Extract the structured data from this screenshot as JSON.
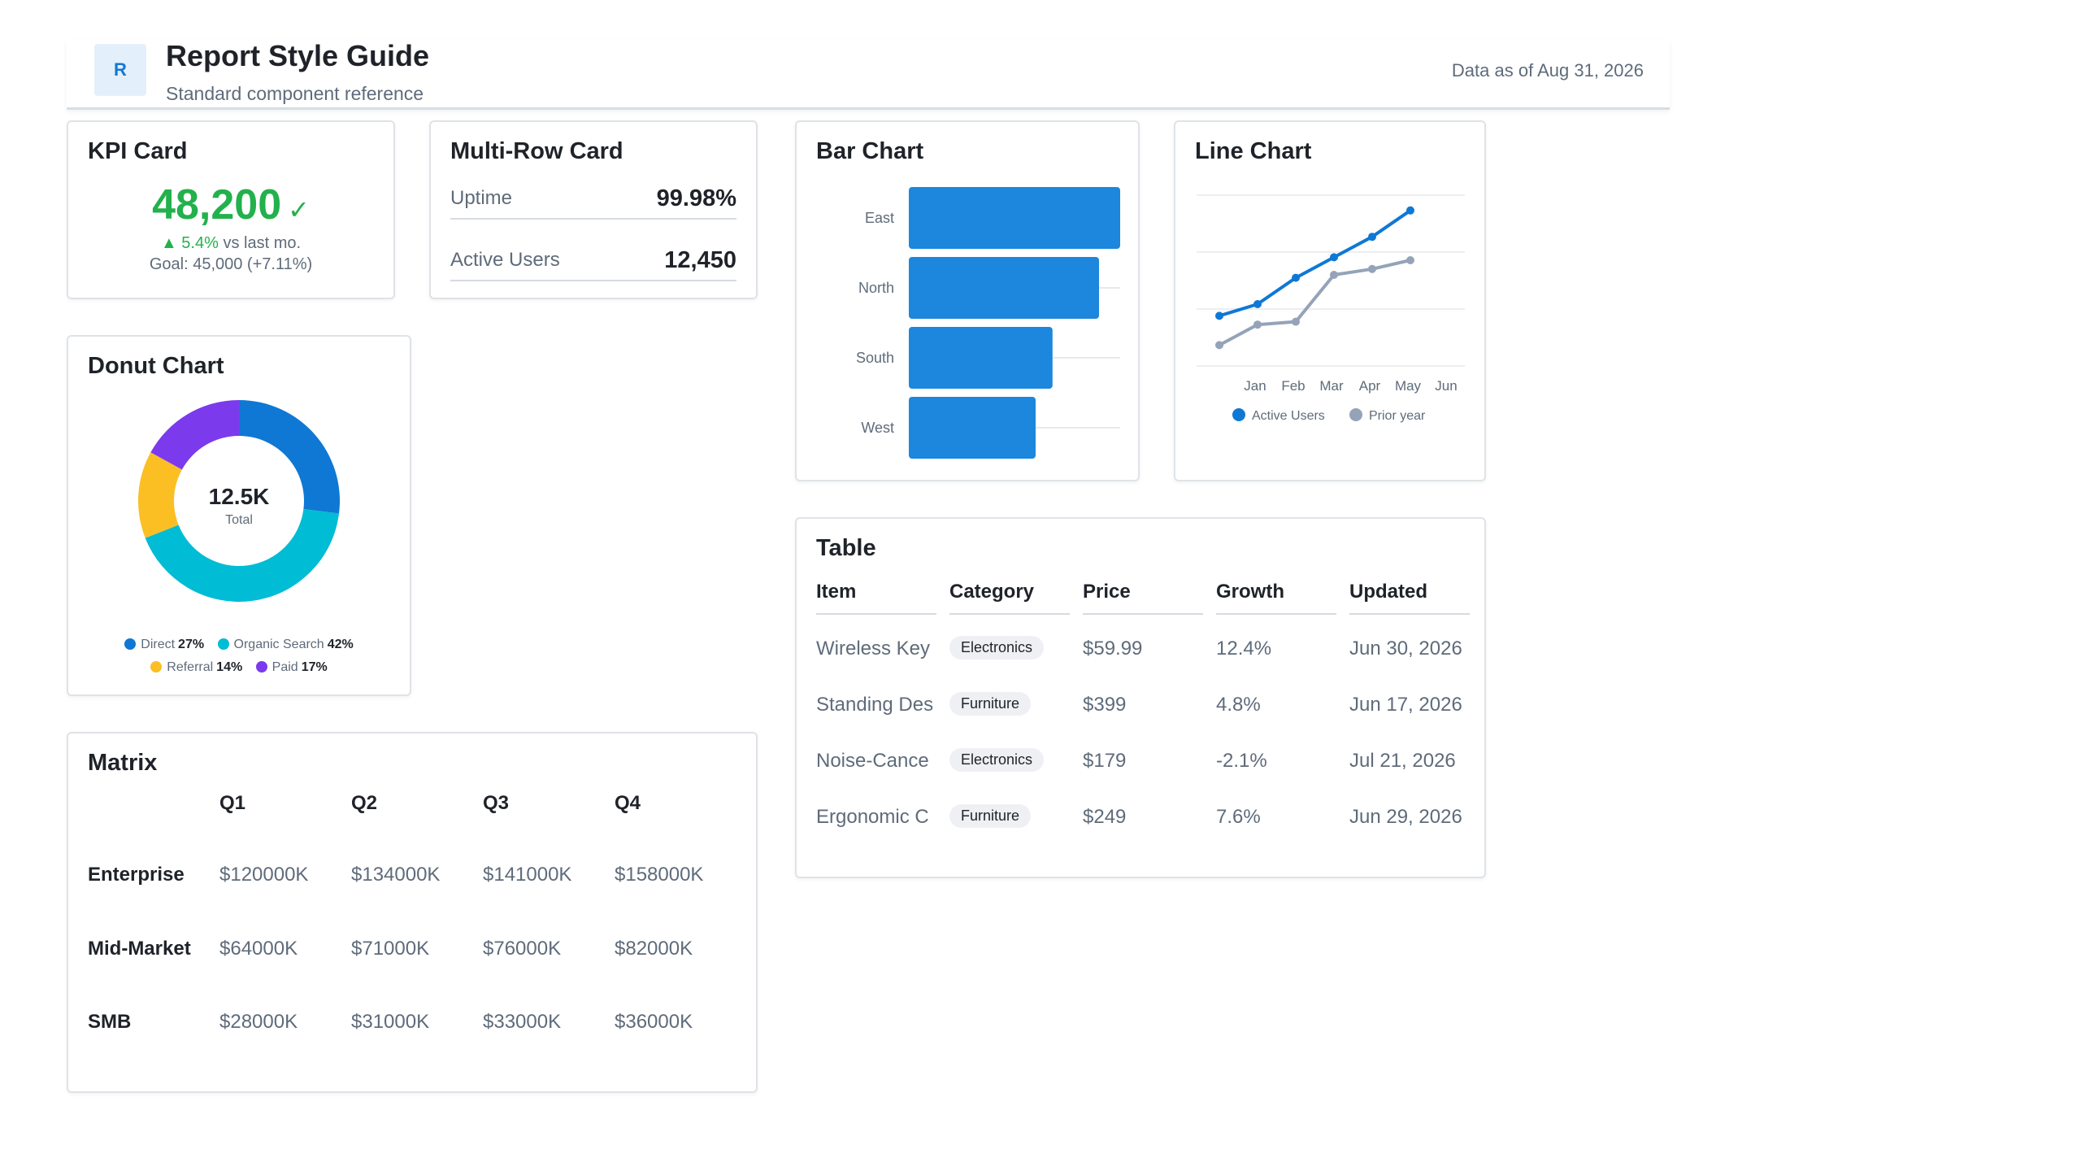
{
  "header": {
    "logo_letter": "R",
    "title": "Report Style Guide",
    "subtitle": "Standard component reference",
    "as_of": "Data as of Aug 31, 2026"
  },
  "kpi": {
    "title": "KPI Card",
    "value": "48,200",
    "check": "✓",
    "delta_arrow": "▲ 5.4%",
    "delta_text": "vs last mo.",
    "goal": "Goal: 45,000 (+7.11%)"
  },
  "multirow": {
    "title": "Multi-Row Card",
    "rows": [
      {
        "label": "Uptime",
        "value": "99.98%"
      },
      {
        "label": "Active Users",
        "value": "12,450"
      }
    ]
  },
  "donut": {
    "title": "Donut Chart",
    "center_value": "12.5K",
    "center_label": "Total",
    "legend": [
      {
        "name": "Direct",
        "pct": "27%",
        "color": "#0f78d4"
      },
      {
        "name": "Organic Search",
        "pct": "42%",
        "color": "#00bcd4"
      },
      {
        "name": "Referral",
        "pct": "14%",
        "color": "#fbbf24"
      },
      {
        "name": "Paid",
        "pct": "17%",
        "color": "#7c3aed"
      }
    ]
  },
  "bar_card": {
    "title": "Bar Chart"
  },
  "line_card": {
    "title": "Line Chart"
  },
  "matrix": {
    "title": "Matrix",
    "columns": [
      "Q1",
      "Q2",
      "Q3",
      "Q4"
    ],
    "rows": [
      {
        "label": "Enterprise",
        "cells": [
          "$120000K",
          "$134000K",
          "$141000K",
          "$158000K"
        ]
      },
      {
        "label": "Mid-Market",
        "cells": [
          "$64000K",
          "$71000K",
          "$76000K",
          "$82000K"
        ]
      },
      {
        "label": "SMB",
        "cells": [
          "$28000K",
          "$31000K",
          "$33000K",
          "$36000K"
        ]
      }
    ]
  },
  "table": {
    "title": "Table",
    "columns": [
      "Item",
      "Category",
      "Price",
      "Growth",
      "Updated"
    ],
    "rows": [
      {
        "item": "Wireless Key",
        "category": "Electronics",
        "price": "$59.99",
        "growth": "12.4%",
        "updated": "Jun 30, 2026"
      },
      {
        "item": "Standing Des",
        "category": "Furniture",
        "price": "$399",
        "growth": "4.8%",
        "updated": "Jun 17, 2026"
      },
      {
        "item": "Noise-Cance",
        "category": "Electronics",
        "price": "$179",
        "growth": "-2.1%",
        "updated": "Jul 21, 2026"
      },
      {
        "item": "Ergonomic C",
        "category": "Furniture",
        "price": "$249",
        "growth": "7.6%",
        "updated": "Jun 29, 2026"
      }
    ]
  },
  "chart_data": [
    {
      "type": "pie",
      "title": "Donut Chart",
      "categories": [
        "Direct",
        "Organic Search",
        "Referral",
        "Paid"
      ],
      "values": [
        27,
        42,
        14,
        17
      ],
      "colors": [
        "#0f78d4",
        "#00bcd4",
        "#fbbf24",
        "#7c3aed"
      ],
      "legend": "bottom"
    },
    {
      "type": "bar",
      "title": "Bar Chart",
      "orientation": "horizontal",
      "categories": [
        "East",
        "North",
        "South",
        "West"
      ],
      "values": [
        100,
        90,
        68,
        60
      ],
      "xlim": [
        0,
        100
      ],
      "color": "#1c87dc",
      "grid": true
    },
    {
      "type": "line",
      "title": "Line Chart",
      "x": [
        "Jan",
        "Feb",
        "Mar",
        "Apr",
        "May",
        "Jun"
      ],
      "series": [
        {
          "name": "Active Users",
          "values": [
            36,
            40,
            49,
            56,
            63,
            72
          ],
          "color": "#0f78d4"
        },
        {
          "name": "Prior year",
          "values": [
            26,
            33,
            34,
            50,
            52,
            55
          ],
          "color": "#94a3b8"
        }
      ],
      "ylim": [
        20,
        80
      ],
      "grid": true,
      "legend": "bottom"
    }
  ]
}
